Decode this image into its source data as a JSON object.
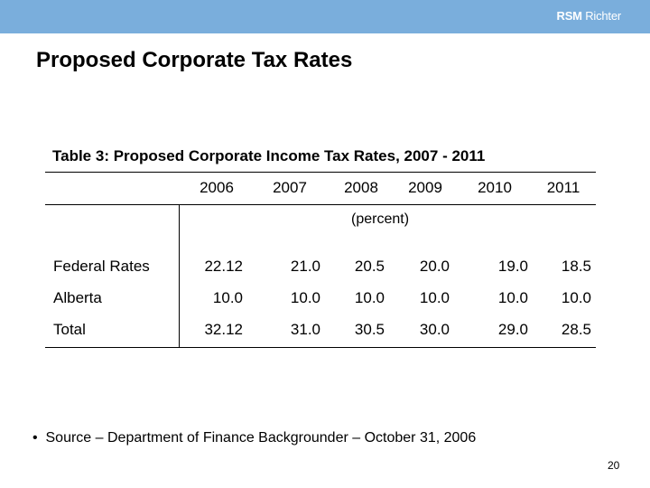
{
  "header": {
    "brand_bold": "RSM",
    "brand_rest": " Richter"
  },
  "slide": {
    "title": "Proposed Corporate Tax Rates",
    "page_number": "20"
  },
  "table": {
    "caption": "Table 3:  Proposed Corporate Income Tax Rates, 2007 - 2011",
    "years": [
      "2006",
      "2007",
      "2008",
      "2009",
      "2010",
      "2011"
    ],
    "unit": "(percent)",
    "rows": [
      {
        "label": "Federal Rates",
        "values": [
          "22.12",
          "21.0",
          "20.5",
          "20.0",
          "19.0",
          "18.5"
        ]
      },
      {
        "label": "Alberta",
        "values": [
          "10.0",
          "10.0",
          "10.0",
          "10.0",
          "10.0",
          "10.0"
        ]
      },
      {
        "label": "Total",
        "values": [
          "32.12",
          "31.0",
          "30.5",
          "30.0",
          "29.0",
          "28.5"
        ]
      }
    ]
  },
  "footnote": {
    "bullet": "•",
    "text": "Source – Department of Finance Backgrounder – October 31, 2006"
  }
}
